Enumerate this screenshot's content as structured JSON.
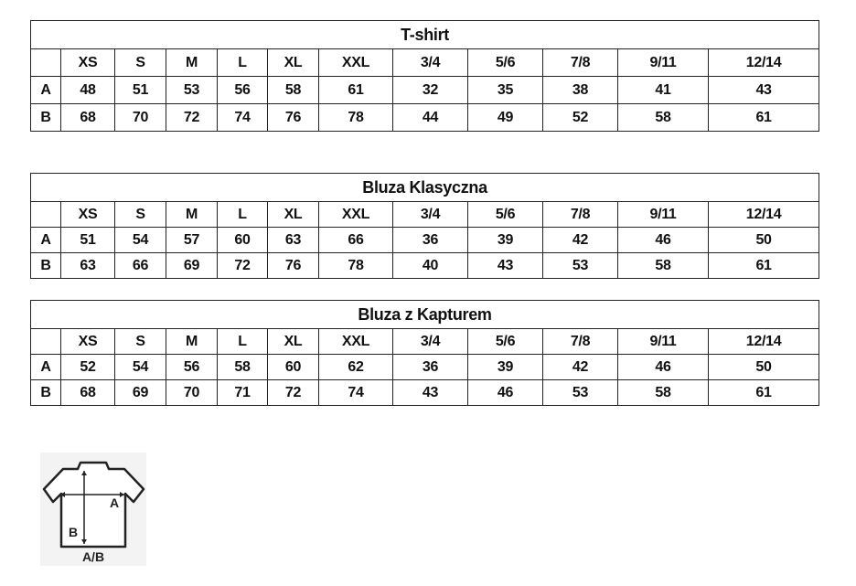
{
  "tables": [
    {
      "title": "T-shirt",
      "sizes": [
        "XS",
        "S",
        "M",
        "L",
        "XL",
        "XXL",
        "3/4",
        "5/6",
        "7/8",
        "9/11",
        "12/14"
      ],
      "rows": [
        {
          "label": "A",
          "values": [
            "48",
            "51",
            "53",
            "56",
            "58",
            "61",
            "32",
            "35",
            "38",
            "41",
            "43"
          ]
        },
        {
          "label": "B",
          "values": [
            "68",
            "70",
            "72",
            "74",
            "76",
            "78",
            "44",
            "49",
            "52",
            "58",
            "61"
          ]
        }
      ]
    },
    {
      "title": "Bluza Klasyczna",
      "sizes": [
        "XS",
        "S",
        "M",
        "L",
        "XL",
        "XXL",
        "3/4",
        "5/6",
        "7/8",
        "9/11",
        "12/14"
      ],
      "rows": [
        {
          "label": "A",
          "values": [
            "51",
            "54",
            "57",
            "60",
            "63",
            "66",
            "36",
            "39",
            "42",
            "46",
            "50"
          ]
        },
        {
          "label": "B",
          "values": [
            "63",
            "66",
            "69",
            "72",
            "76",
            "78",
            "40",
            "43",
            "53",
            "58",
            "61"
          ]
        }
      ]
    },
    {
      "title": "Bluza z Kapturem",
      "sizes": [
        "XS",
        "S",
        "M",
        "L",
        "XL",
        "XXL",
        "3/4",
        "5/6",
        "7/8",
        "9/11",
        "12/14"
      ],
      "rows": [
        {
          "label": "A",
          "values": [
            "52",
            "54",
            "56",
            "58",
            "60",
            "62",
            "36",
            "39",
            "42",
            "46",
            "50"
          ]
        },
        {
          "label": "B",
          "values": [
            "68",
            "69",
            "70",
            "71",
            "72",
            "74",
            "43",
            "46",
            "53",
            "58",
            "61"
          ]
        }
      ]
    }
  ],
  "diagram": {
    "icon": "tshirt-measurement-icon",
    "label_a": "A",
    "label_b": "B",
    "caption": "A/B"
  }
}
